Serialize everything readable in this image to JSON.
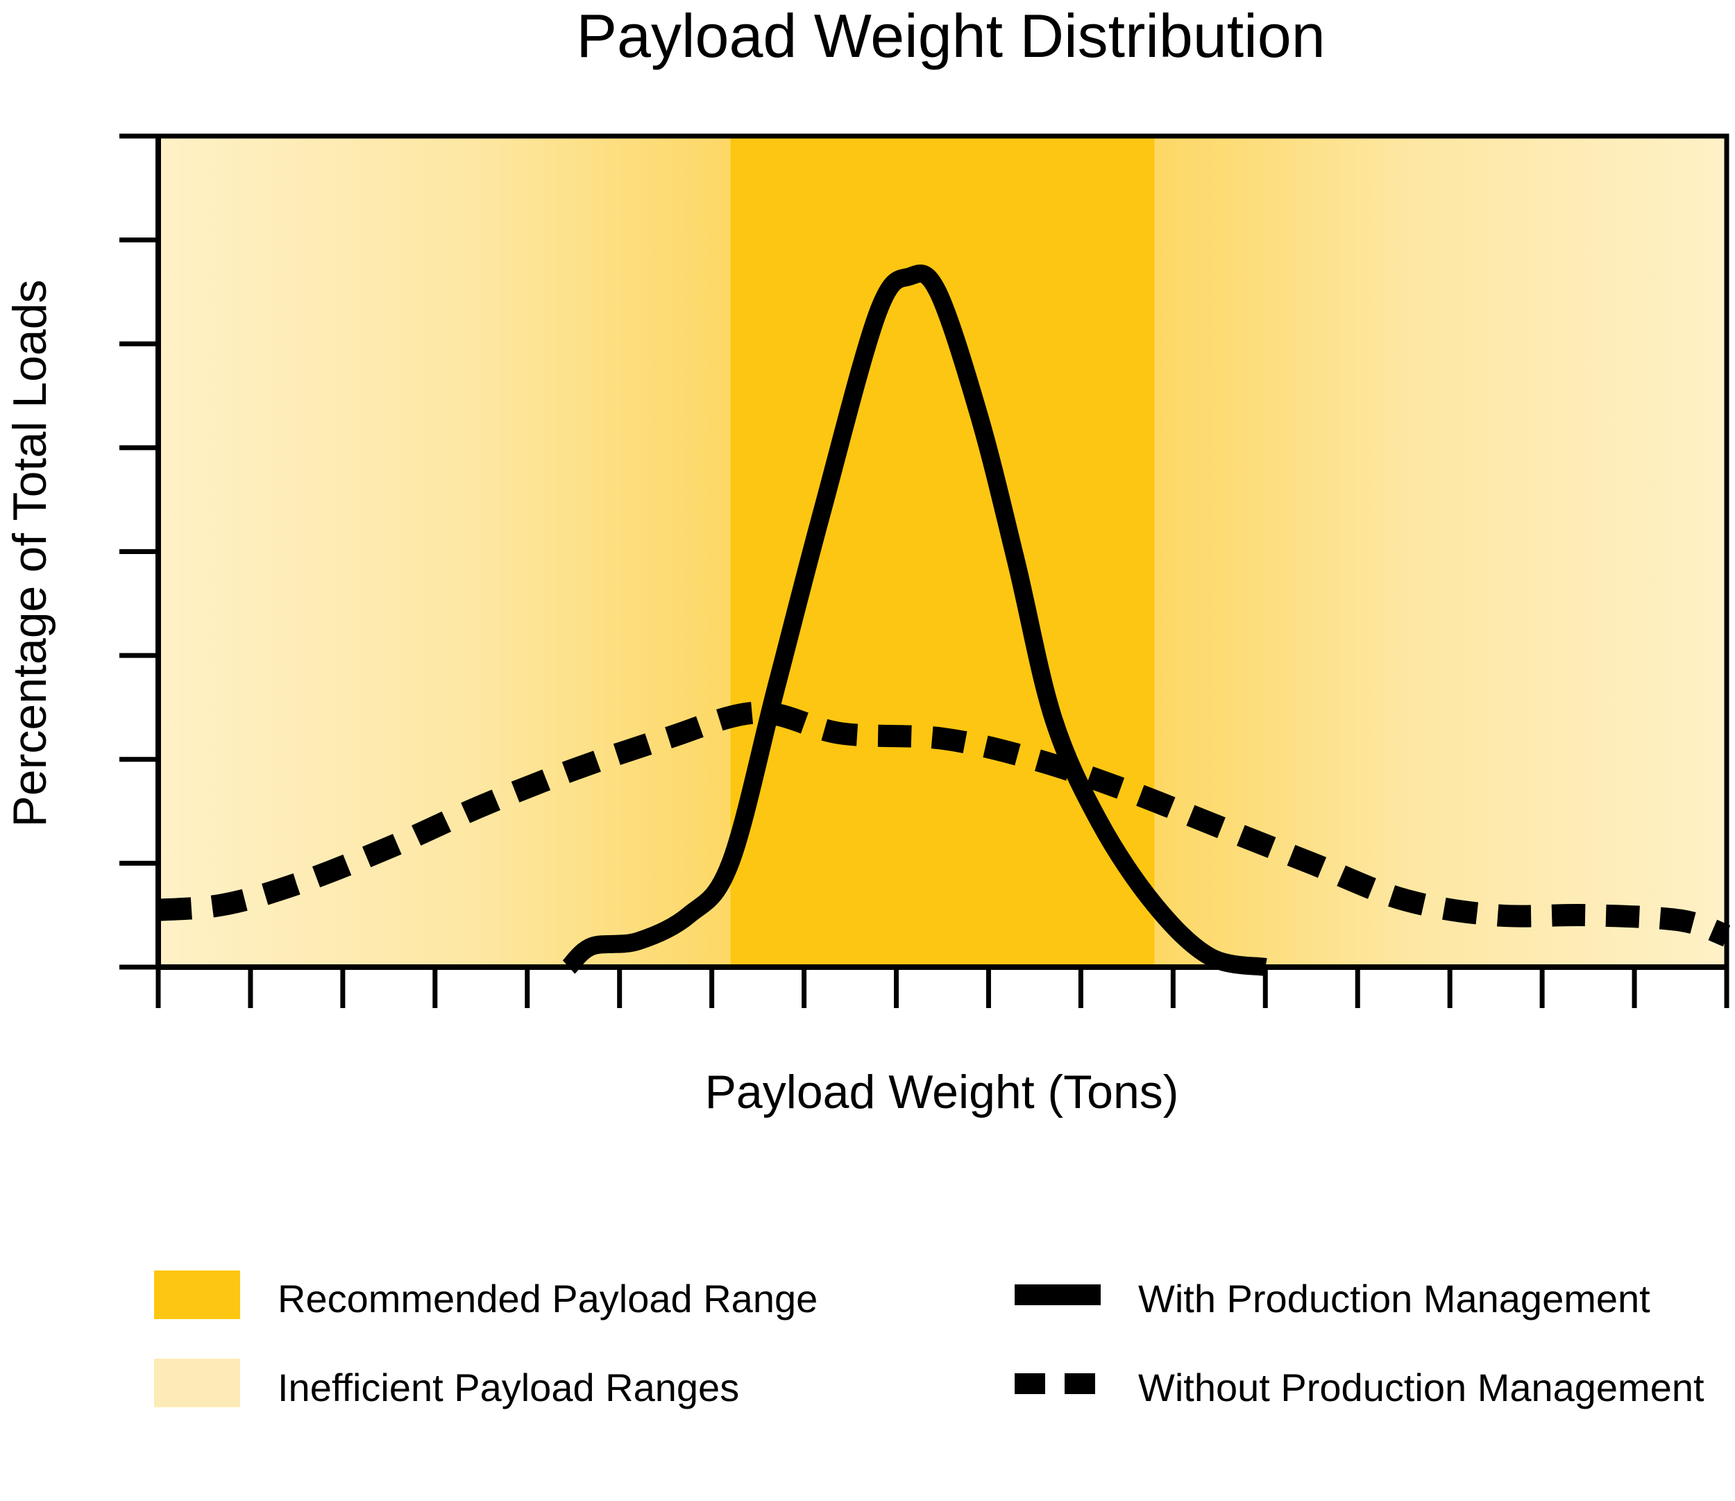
{
  "chart_data": {
    "type": "line",
    "title": "Payload Weight Distribution",
    "xlabel": "Payload Weight (Tons)",
    "ylabel": "Percentage of Total Loads",
    "xlim": [
      0,
      17
    ],
    "ylim": [
      0,
      8
    ],
    "x_tick_count": 18,
    "y_tick_count": 9,
    "x_tick_labels": [],
    "y_tick_labels": [],
    "grid": false,
    "bands": [
      {
        "name": "Recommended Payload Range",
        "kind": "recommended",
        "from": 6.2,
        "to": 10.8,
        "color": "#fdc612"
      },
      {
        "name": "Inefficient Payload Ranges",
        "kind": "inefficient",
        "from": 0,
        "to": 6.2,
        "color": "#fdebb7"
      },
      {
        "name": "Inefficient Payload Ranges",
        "kind": "inefficient",
        "from": 10.8,
        "to": 17,
        "color": "#fdebb7"
      }
    ],
    "series": [
      {
        "name": "With Production Management",
        "style": "solid",
        "color": "#000000",
        "points": [
          [
            4.45,
            0
          ],
          [
            4.7,
            0.2
          ],
          [
            5.2,
            0.25
          ],
          [
            5.75,
            0.5
          ],
          [
            6.2,
            1.0
          ],
          [
            6.7,
            2.7
          ],
          [
            7.2,
            4.4
          ],
          [
            7.8,
            6.3
          ],
          [
            8.15,
            6.65
          ],
          [
            8.45,
            6.5
          ],
          [
            8.9,
            5.3
          ],
          [
            9.3,
            3.9
          ],
          [
            9.7,
            2.4
          ],
          [
            10.2,
            1.4
          ],
          [
            10.8,
            0.6
          ],
          [
            11.4,
            0.1
          ],
          [
            12.0,
            0
          ]
        ]
      },
      {
        "name": "Without Production Management",
        "style": "dashed",
        "color": "#000000",
        "points": [
          [
            0,
            0.55
          ],
          [
            0.7,
            0.6
          ],
          [
            1.5,
            0.8
          ],
          [
            2.5,
            1.15
          ],
          [
            3.5,
            1.55
          ],
          [
            4.5,
            1.9
          ],
          [
            5.5,
            2.2
          ],
          [
            6.5,
            2.45
          ],
          [
            7.4,
            2.25
          ],
          [
            8.5,
            2.2
          ],
          [
            9.5,
            2.0
          ],
          [
            10.5,
            1.7
          ],
          [
            11.5,
            1.35
          ],
          [
            12.5,
            1.0
          ],
          [
            13.5,
            0.65
          ],
          [
            14.5,
            0.5
          ],
          [
            15.5,
            0.5
          ],
          [
            16.5,
            0.45
          ],
          [
            17.0,
            0.3
          ]
        ]
      }
    ],
    "legend": {
      "placement": "bottom",
      "items": [
        {
          "label": "Recommended Payload Range",
          "kind": "swatch",
          "color": "#fdc612"
        },
        {
          "label": "Inefficient Payload Ranges",
          "kind": "swatch",
          "color": "#fdebb7"
        },
        {
          "label": "With Production Management",
          "kind": "solid-line",
          "color": "#000000"
        },
        {
          "label": "Without Production Management",
          "kind": "dashed-line",
          "color": "#000000"
        }
      ]
    }
  }
}
